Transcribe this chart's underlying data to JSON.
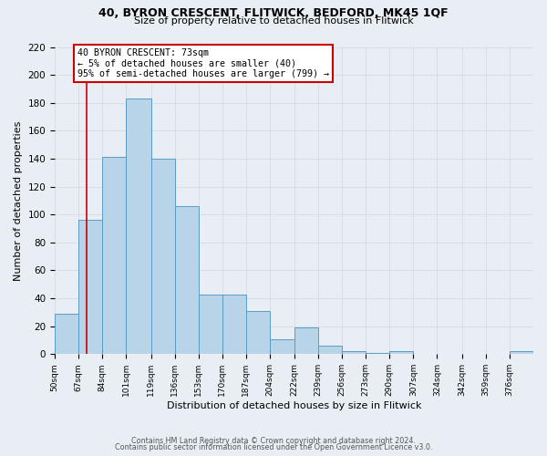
{
  "title1": "40, BYRON CRESCENT, FLITWICK, BEDFORD, MK45 1QF",
  "title2": "Size of property relative to detached houses in Flitwick",
  "xlabel": "Distribution of detached houses by size in Flitwick",
  "ylabel": "Number of detached properties",
  "bar_color": "#b8d4e8",
  "bar_edge_color": "#5a9cc5",
  "grid_color": "#d0d8e0",
  "bg_color": "#e8eef4",
  "plot_bg_color": "#e8eef4",
  "annotation_box_color": "#ffffff",
  "annotation_box_edge": "#cc0000",
  "red_line_color": "#cc0000",
  "annotation_title": "40 BYRON CRESCENT: 73sqm",
  "annotation_line1": "← 5% of detached houses are smaller (40)",
  "annotation_line2": "95% of semi-detached houses are larger (799) →",
  "red_line_x": 73,
  "bins": [
    50,
    67,
    84,
    101,
    119,
    136,
    153,
    170,
    187,
    204,
    222,
    239,
    256,
    273,
    290,
    307,
    324,
    342,
    359,
    376,
    393
  ],
  "counts": [
    29,
    96,
    141,
    183,
    140,
    106,
    43,
    43,
    31,
    11,
    19,
    6,
    2,
    1,
    2,
    0,
    0,
    0,
    0,
    2
  ],
  "ylim": [
    0,
    220
  ],
  "yticks": [
    0,
    20,
    40,
    60,
    80,
    100,
    120,
    140,
    160,
    180,
    200,
    220
  ],
  "footer1": "Contains HM Land Registry data © Crown copyright and database right 2024.",
  "footer2": "Contains public sector information licensed under the Open Government Licence v3.0."
}
